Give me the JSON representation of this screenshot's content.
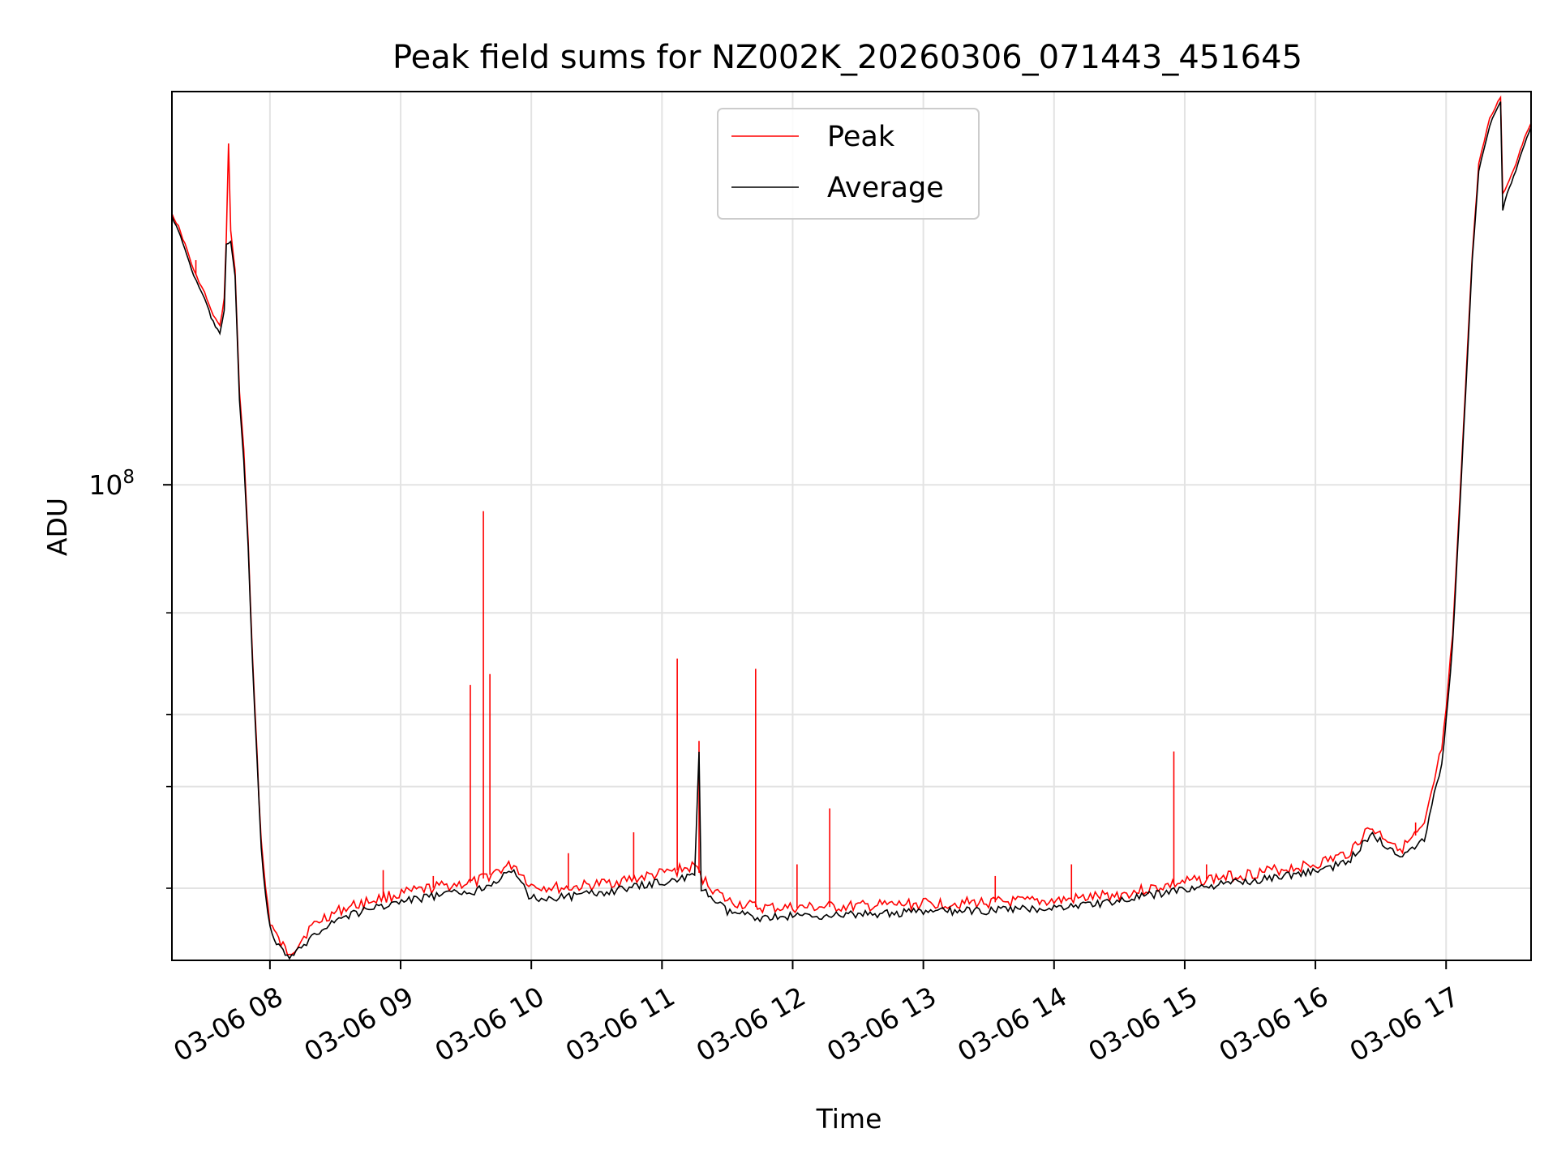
{
  "chart_data": {
    "type": "line",
    "title": "Peak field sums for NZ002K_20260306_071443_451645",
    "xlabel": "Time",
    "ylabel": "ADU",
    "y_scale": "log",
    "grid": true,
    "legend_position": "top-center",
    "x_range": [
      "2026-03-06 07:15",
      "2026-03-06 17:39"
    ],
    "ylim": [
      15000000.0,
      480000000.0
    ],
    "x_tick_labels": [
      "03-06 08",
      "03-06 09",
      "03-06 10",
      "03-06 11",
      "03-06 12",
      "03-06 13",
      "03-06 14",
      "03-06 15",
      "03-06 16",
      "03-06 17"
    ],
    "x_ticks": [
      "2026-03-06 08:00",
      "2026-03-06 09:00",
      "2026-03-06 10:00",
      "2026-03-06 11:00",
      "2026-03-06 12:00",
      "2026-03-06 13:00",
      "2026-03-06 14:00",
      "2026-03-06 15:00",
      "2026-03-06 16:00",
      "2026-03-06 17:00"
    ],
    "y_major_ticks": [
      {
        "value": 100000000,
        "base": "10",
        "exponent": "8"
      }
    ],
    "y_minor_ticks": [
      20000000,
      30000000,
      40000000,
      60000000
    ],
    "series": [
      {
        "name": "Peak",
        "color": "#ff0000",
        "points": [
          [
            "2026-03-06 07:15",
            295000000.0
          ],
          [
            "2026-03-06 07:18",
            280000000.0
          ],
          [
            "2026-03-06 07:22",
            255000000.0
          ],
          [
            "2026-03-06 07:25",
            235000000.0
          ],
          [
            "2026-03-06 07:30",
            215000000.0
          ],
          [
            "2026-03-06 07:33",
            200000000.0
          ],
          [
            "2026-03-06 07:37",
            188000000.0
          ],
          [
            "2026-03-06 07:39",
            210000000.0
          ],
          [
            "2026-03-06 07:40",
            270000000.0
          ],
          [
            "2026-03-06 07:41",
            390000000.0
          ],
          [
            "2026-03-06 07:42",
            275000000.0
          ],
          [
            "2026-03-06 07:44",
            235000000.0
          ],
          [
            "2026-03-06 07:46",
            145000000.0
          ],
          [
            "2026-03-06 07:48",
            115000000.0
          ],
          [
            "2026-03-06 07:50",
            80000000.0
          ],
          [
            "2026-03-06 07:52",
            50000000.0
          ],
          [
            "2026-03-06 07:54",
            35000000.0
          ],
          [
            "2026-03-06 07:56",
            24000000.0
          ],
          [
            "2026-03-06 07:58",
            20000000.0
          ],
          [
            "2026-03-06 08:00",
            17500000.0
          ],
          [
            "2026-03-06 08:04",
            16200000.0
          ],
          [
            "2026-03-06 08:08",
            15500000.0
          ],
          [
            "2026-03-06 08:12",
            15800000.0
          ],
          [
            "2026-03-06 08:18",
            17000000.0
          ],
          [
            "2026-03-06 08:25",
            17800000.0
          ],
          [
            "2026-03-06 08:35",
            18500000.0
          ],
          [
            "2026-03-06 08:50",
            19200000.0
          ],
          [
            "2026-03-06 09:05",
            19700000.0
          ],
          [
            "2026-03-06 09:20",
            20200000.0
          ],
          [
            "2026-03-06 09:35",
            20500000.0
          ],
          [
            "2026-03-06 09:45",
            21500000.0
          ],
          [
            "2026-03-06 09:52",
            22000000.0
          ],
          [
            "2026-03-06 10:00",
            20200000.0
          ],
          [
            "2026-03-06 10:15",
            20000000.0
          ],
          [
            "2026-03-06 10:30",
            20300000.0
          ],
          [
            "2026-03-06 10:45",
            20700000.0
          ],
          [
            "2026-03-06 11:00",
            21200000.0
          ],
          [
            "2026-03-06 11:15",
            21800000.0
          ],
          [
            "2026-03-06 11:20",
            20500000.0
          ],
          [
            "2026-03-06 11:30",
            19000000.0
          ],
          [
            "2026-03-06 11:45",
            18500000.0
          ],
          [
            "2026-03-06 12:00",
            18500000.0
          ],
          [
            "2026-03-06 12:30",
            18600000.0
          ],
          [
            "2026-03-06 13:00",
            18800000.0
          ],
          [
            "2026-03-06 13:30",
            18900000.0
          ],
          [
            "2026-03-06 14:00",
            19000000.0
          ],
          [
            "2026-03-06 14:30",
            19500000.0
          ],
          [
            "2026-03-06 15:00",
            20500000.0
          ],
          [
            "2026-03-06 15:30",
            21200000.0
          ],
          [
            "2026-03-06 16:00",
            22000000.0
          ],
          [
            "2026-03-06 16:15",
            23000000.0
          ],
          [
            "2026-03-06 16:25",
            25500000.0
          ],
          [
            "2026-03-06 16:32",
            24500000.0
          ],
          [
            "2026-03-06 16:40",
            23500000.0
          ],
          [
            "2026-03-06 16:50",
            25500000.0
          ],
          [
            "2026-03-06 16:58",
            35000000.0
          ],
          [
            "2026-03-06 17:00",
            40000000.0
          ],
          [
            "2026-03-06 17:03",
            55000000.0
          ],
          [
            "2026-03-06 17:06",
            90000000.0
          ],
          [
            "2026-03-06 17:09",
            150000000.0
          ],
          [
            "2026-03-06 17:12",
            250000000.0
          ],
          [
            "2026-03-06 17:15",
            360000000.0
          ],
          [
            "2026-03-06 17:20",
            430000000.0
          ],
          [
            "2026-03-06 17:25",
            470000000.0
          ],
          [
            "2026-03-06 17:26",
            320000000.0
          ],
          [
            "2026-03-06 17:28",
            330000000.0
          ],
          [
            "2026-03-06 17:32",
            360000000.0
          ],
          [
            "2026-03-06 17:36",
            400000000.0
          ],
          [
            "2026-03-06 17:39",
            425000000.0
          ]
        ],
        "spikes": [
          [
            "2026-03-06 07:26",
            245000000.0
          ],
          [
            "2026-03-06 08:52",
            21500000.0
          ],
          [
            "2026-03-06 09:15",
            21000000.0
          ],
          [
            "2026-03-06 09:32",
            45000000.0
          ],
          [
            "2026-03-06 09:38",
            90000000.0
          ],
          [
            "2026-03-06 09:41",
            47000000.0
          ],
          [
            "2026-03-06 10:17",
            23000000.0
          ],
          [
            "2026-03-06 10:47",
            25000000.0
          ],
          [
            "2026-03-06 11:07",
            50000000.0
          ],
          [
            "2026-03-06 11:17",
            36000000.0
          ],
          [
            "2026-03-06 11:43",
            48000000.0
          ],
          [
            "2026-03-06 12:02",
            22000000.0
          ],
          [
            "2026-03-06 12:17",
            27500000.0
          ],
          [
            "2026-03-06 13:33",
            21000000.0
          ],
          [
            "2026-03-06 14:08",
            22000000.0
          ],
          [
            "2026-03-06 14:55",
            34500000.0
          ],
          [
            "2026-03-06 15:10",
            22000000.0
          ],
          [
            "2026-03-06 16:46",
            26000000.0
          ]
        ]
      },
      {
        "name": "Average",
        "color": "#000000",
        "points": [
          [
            "2026-03-06 07:15",
            292000000.0
          ],
          [
            "2026-03-06 07:18",
            275000000.0
          ],
          [
            "2026-03-06 07:22",
            250000000.0
          ],
          [
            "2026-03-06 07:25",
            230000000.0
          ],
          [
            "2026-03-06 07:30",
            210000000.0
          ],
          [
            "2026-03-06 07:33",
            195000000.0
          ],
          [
            "2026-03-06 07:37",
            182000000.0
          ],
          [
            "2026-03-06 07:39",
            200000000.0
          ],
          [
            "2026-03-06 07:40",
            260000000.0
          ],
          [
            "2026-03-06 07:42",
            265000000.0
          ],
          [
            "2026-03-06 07:44",
            230000000.0
          ],
          [
            "2026-03-06 07:46",
            140000000.0
          ],
          [
            "2026-03-06 07:48",
            110000000.0
          ],
          [
            "2026-03-06 07:50",
            78000000.0
          ],
          [
            "2026-03-06 07:52",
            49000000.0
          ],
          [
            "2026-03-06 07:54",
            34000000.0
          ],
          [
            "2026-03-06 07:56",
            23500000.0
          ],
          [
            "2026-03-06 07:58",
            19500000.0
          ],
          [
            "2026-03-06 08:00",
            17000000.0
          ],
          [
            "2026-03-06 08:04",
            15800000.0
          ],
          [
            "2026-03-06 08:08",
            15200000.0
          ],
          [
            "2026-03-06 08:12",
            15400000.0
          ],
          [
            "2026-03-06 08:18",
            16300000.0
          ],
          [
            "2026-03-06 08:25",
            17200000.0
          ],
          [
            "2026-03-06 08:35",
            17900000.0
          ],
          [
            "2026-03-06 08:50",
            18600000.0
          ],
          [
            "2026-03-06 09:05",
            19100000.0
          ],
          [
            "2026-03-06 09:20",
            19500000.0
          ],
          [
            "2026-03-06 09:35",
            19800000.0
          ],
          [
            "2026-03-06 09:45",
            20800000.0
          ],
          [
            "2026-03-06 09:52",
            21300000.0
          ],
          [
            "2026-03-06 10:00",
            19200000.0
          ],
          [
            "2026-03-06 10:15",
            19300000.0
          ],
          [
            "2026-03-06 10:30",
            19600000.0
          ],
          [
            "2026-03-06 10:45",
            20000000.0
          ],
          [
            "2026-03-06 11:00",
            20500000.0
          ],
          [
            "2026-03-06 11:15",
            21000000.0
          ],
          [
            "2026-03-06 11:17",
            34000000.0
          ],
          [
            "2026-03-06 11:18",
            20000000.0
          ],
          [
            "2026-03-06 11:30",
            18200000.0
          ],
          [
            "2026-03-06 11:45",
            17800000.0
          ],
          [
            "2026-03-06 12:00",
            17900000.0
          ],
          [
            "2026-03-06 12:30",
            18000000.0
          ],
          [
            "2026-03-06 13:00",
            18200000.0
          ],
          [
            "2026-03-06 13:30",
            18300000.0
          ],
          [
            "2026-03-06 14:00",
            18500000.0
          ],
          [
            "2026-03-06 14:30",
            19000000.0
          ],
          [
            "2026-03-06 14:55",
            19800000.0
          ],
          [
            "2026-03-06 15:00",
            19900000.0
          ],
          [
            "2026-03-06 15:30",
            20600000.0
          ],
          [
            "2026-03-06 16:00",
            21400000.0
          ],
          [
            "2026-03-06 16:15",
            22200000.0
          ],
          [
            "2026-03-06 16:25",
            24800000.0
          ],
          [
            "2026-03-06 16:32",
            23800000.0
          ],
          [
            "2026-03-06 16:40",
            22800000.0
          ],
          [
            "2026-03-06 16:50",
            24500000.0
          ],
          [
            "2026-03-06 16:58",
            33000000.0
          ],
          [
            "2026-03-06 17:00",
            39000000.0
          ],
          [
            "2026-03-06 17:03",
            53000000.0
          ],
          [
            "2026-03-06 17:06",
            87000000.0
          ],
          [
            "2026-03-06 17:09",
            145000000.0
          ],
          [
            "2026-03-06 17:12",
            245000000.0
          ],
          [
            "2026-03-06 17:15",
            350000000.0
          ],
          [
            "2026-03-06 17:20",
            420000000.0
          ],
          [
            "2026-03-06 17:25",
            460000000.0
          ],
          [
            "2026-03-06 17:26",
            300000000.0
          ],
          [
            "2026-03-06 17:28",
            320000000.0
          ],
          [
            "2026-03-06 17:32",
            350000000.0
          ],
          [
            "2026-03-06 17:36",
            390000000.0
          ],
          [
            "2026-03-06 17:39",
            415000000.0
          ]
        ],
        "spikes": []
      }
    ]
  }
}
